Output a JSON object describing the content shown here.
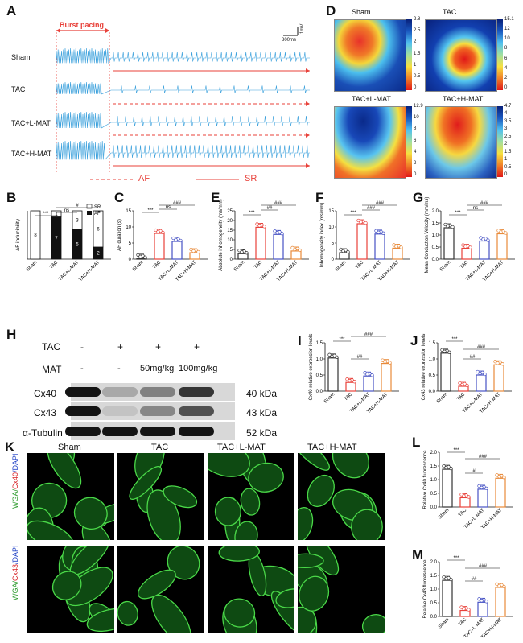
{
  "panels": {
    "A": "A",
    "B": "B",
    "C": "C",
    "D": "D",
    "E": "E",
    "F": "F",
    "G": "G",
    "H": "H",
    "I": "I",
    "J": "J",
    "K": "K",
    "L": "L",
    "M": "M"
  },
  "panelA": {
    "burst_label": "Burst pacing",
    "scale_time": "800ms",
    "scale_mv": "1mV",
    "rows": [
      "Sham",
      "TAC",
      "TAC+L-MAT",
      "TAC+H-MAT"
    ],
    "legend_af": "AF",
    "legend_sr": "SR"
  },
  "panelD": {
    "maps": [
      {
        "title": "Sham",
        "ticks": [
          "2.8",
          "2.5",
          "2",
          "1.5",
          "1",
          "0.5",
          "0"
        ]
      },
      {
        "title": "TAC",
        "ticks": [
          "15.1",
          "12",
          "10",
          "8",
          "6",
          "4",
          "2",
          "0"
        ]
      },
      {
        "title": "TAC+L-MAT",
        "ticks": [
          "12.9",
          "10",
          "8",
          "6",
          "4",
          "2",
          "0"
        ]
      },
      {
        "title": "TAC+H-MAT",
        "ticks": [
          "4.7",
          "4",
          "3.5",
          "3",
          "2.5",
          "2",
          "1.5",
          "1",
          "0.5",
          "0"
        ]
      }
    ]
  },
  "groups": [
    "Sham",
    "TAC",
    "TAC+L-MAT",
    "TAC+H-MAT"
  ],
  "sig": {
    "triple_star": "***",
    "ns": "ns",
    "hash": "#",
    "double_hash": "##",
    "triple_hash": "###"
  },
  "panelH": {
    "tac_label": "TAC",
    "mat_label": "MAT",
    "tac_values": [
      "-",
      "+",
      "+",
      "+"
    ],
    "mat_values": [
      "-",
      "-",
      "50mg/kg",
      "100mg/kg"
    ],
    "proteins": [
      {
        "name": "Cx40",
        "size": "40 kDa"
      },
      {
        "name": "Cx43",
        "size": "43 kDa"
      },
      {
        "name": "α-Tubulin",
        "size": "52 kDa"
      }
    ]
  },
  "panelK": {
    "cols": [
      "Sham",
      "TAC",
      "TAC+L-MAT",
      "TAC+H-MAT"
    ],
    "row1_wga": "WGA/",
    "row1_cx": "Cx40",
    "row1_dapi": "/DAPI",
    "row2_wga": "WGA/",
    "row2_cx": "Cx43",
    "row2_dapi": "/DAPI"
  },
  "chart_data": [
    {
      "id": "B",
      "type": "bar",
      "ylabel": "AF inducibility",
      "categories": [
        "Sham",
        "TAC",
        "TAC+L-MAT",
        "TAC+H-MAT"
      ],
      "series": [
        {
          "name": "SR",
          "values": [
            8,
            1,
            3,
            6
          ]
        },
        {
          "name": "AF",
          "values": [
            0,
            7,
            5,
            2
          ]
        }
      ],
      "ylim": [
        0,
        8
      ]
    },
    {
      "id": "C",
      "type": "bar",
      "ylabel": "AF duration (s)",
      "categories": [
        "Sham",
        "TAC",
        "TAC+L-MAT",
        "TAC+H-MAT"
      ],
      "values": [
        0.3,
        8.0,
        5.5,
        2.0
      ],
      "ylim": [
        0,
        15
      ],
      "yticks": [
        "0",
        "5",
        "10",
        "15"
      ]
    },
    {
      "id": "E",
      "type": "bar",
      "ylabel": "Absolute inhomogeneity (ms/mm)",
      "categories": [
        "Sham",
        "TAC",
        "TAC+L-MAT",
        "TAC+H-MAT"
      ],
      "values": [
        2.8,
        16.5,
        12.8,
        4.2
      ],
      "ylim": [
        0,
        25
      ],
      "yticks": [
        "0",
        "5",
        "10",
        "15",
        "20",
        "25"
      ]
    },
    {
      "id": "F",
      "type": "bar",
      "ylabel": "Inhomogeneity index (ms/mm)",
      "categories": [
        "Sham",
        "TAC",
        "TAC+L-MAT",
        "TAC+H-MAT"
      ],
      "values": [
        2.0,
        11.0,
        7.8,
        3.4
      ],
      "ylim": [
        0,
        15
      ],
      "yticks": [
        "0",
        "5",
        "10",
        "15"
      ]
    },
    {
      "id": "G",
      "type": "bar",
      "ylabel": "Mean Conduction Velocity (mm/ms)",
      "categories": [
        "Sham",
        "TAC",
        "TAC+L-MAT",
        "TAC+H-MAT"
      ],
      "values": [
        1.3,
        0.45,
        0.75,
        1.05
      ],
      "ylim": [
        0,
        2.0
      ],
      "yticks": [
        "0.0",
        "0.5",
        "1.0",
        "1.5",
        "2.0"
      ]
    },
    {
      "id": "I",
      "type": "bar",
      "ylabel": "Cx40 relative expression levels",
      "categories": [
        "Sham",
        "TAC",
        "TAC+L-MAT",
        "TAC+H-MAT"
      ],
      "values": [
        1.03,
        0.27,
        0.47,
        0.86
      ],
      "ylim": [
        0,
        1.5
      ],
      "yticks": [
        "0.0",
        "0.5",
        "1.0",
        "1.5"
      ]
    },
    {
      "id": "J",
      "type": "bar",
      "ylabel": "Cx43 relative expression levels",
      "categories": [
        "Sham",
        "TAC",
        "TAC+L-MAT",
        "TAC+H-MAT"
      ],
      "values": [
        1.18,
        0.15,
        0.5,
        0.82
      ],
      "ylim": [
        0,
        1.5
      ],
      "yticks": [
        "0.0",
        "0.5",
        "1.0",
        "1.5"
      ]
    },
    {
      "id": "L",
      "type": "bar",
      "ylabel": "Relative Cx40 fluorescence",
      "categories": [
        "Sham",
        "TAC",
        "TAC+L-MAT",
        "TAC+H-MAT"
      ],
      "values": [
        1.38,
        0.34,
        0.65,
        1.05
      ],
      "ylim": [
        0,
        2.0
      ],
      "yticks": [
        "0.0",
        "0.5",
        "1.0",
        "1.5",
        "2.0"
      ]
    },
    {
      "id": "M",
      "type": "bar",
      "ylabel": "Relative Cx43 fluorescence",
      "categories": [
        "Sham",
        "TAC",
        "TAC+L-MAT",
        "TAC+H-MAT"
      ],
      "values": [
        1.32,
        0.22,
        0.52,
        1.06
      ],
      "ylim": [
        0,
        2.0
      ],
      "yticks": [
        "0.0",
        "0.5",
        "1.0",
        "1.5",
        "2.0"
      ]
    }
  ],
  "colors": {
    "sham": "#333333",
    "tac": "#e8413a",
    "lmat": "#4652c4",
    "hmat": "#e88a3a",
    "trace": "#3aa0dc",
    "red": "#e8413a"
  }
}
